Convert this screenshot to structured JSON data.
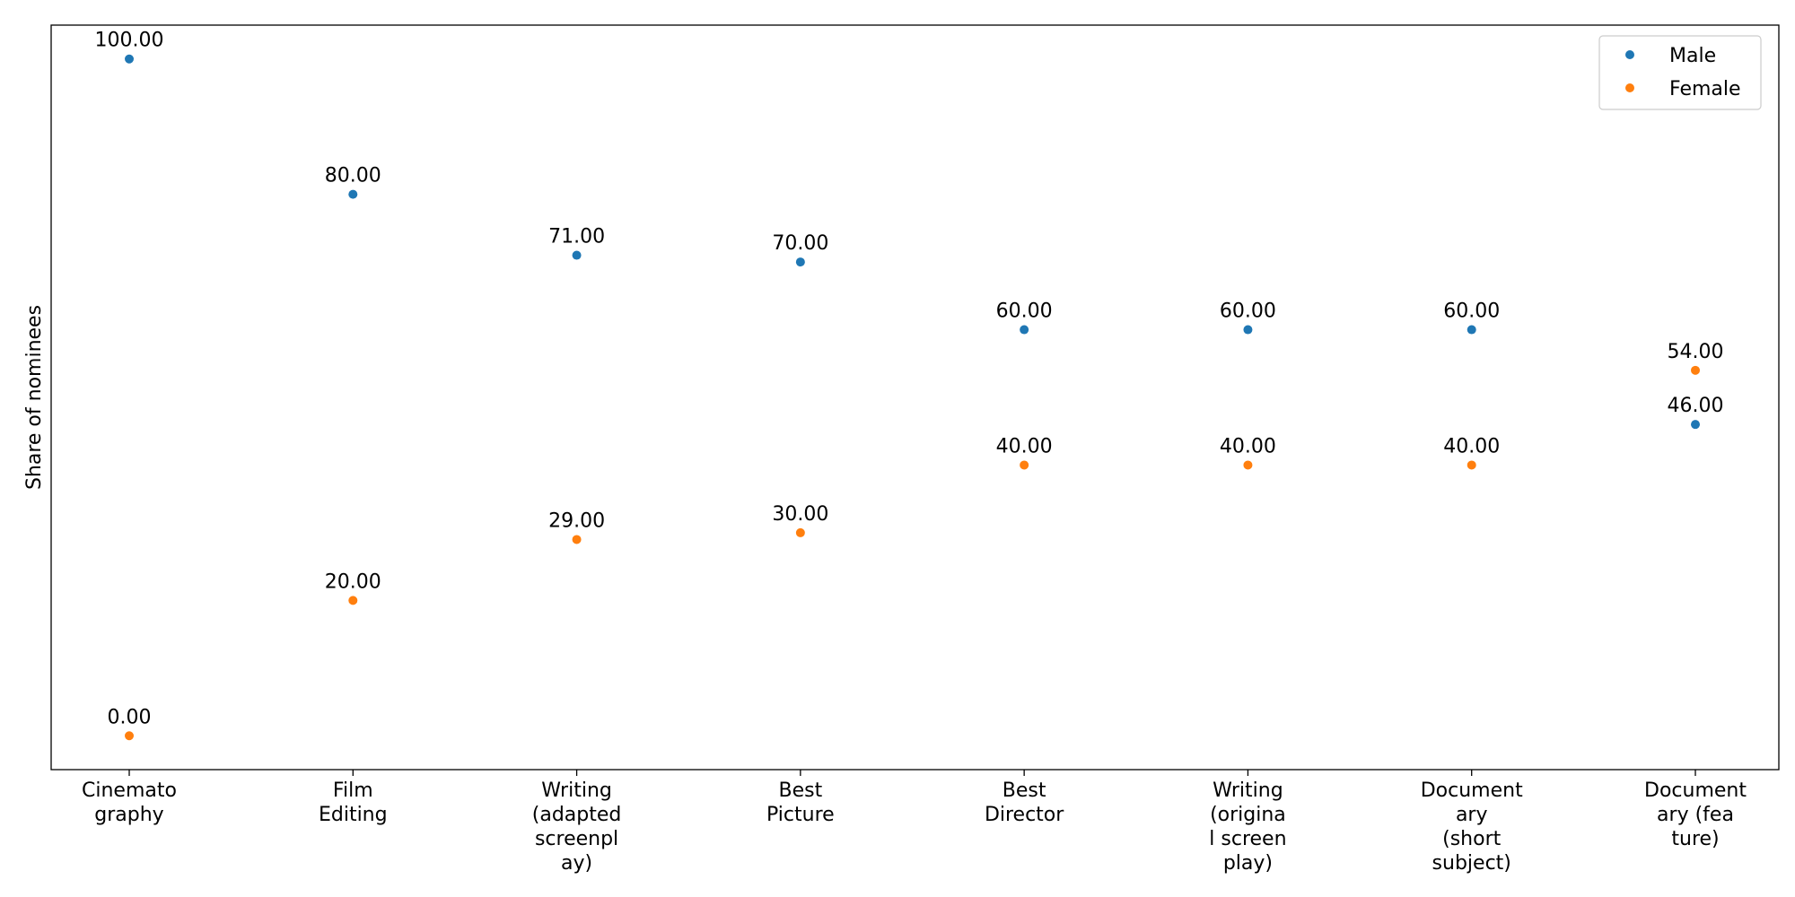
{
  "chart_data": {
    "type": "scatter",
    "title": "",
    "xlabel": "",
    "ylabel": "Share of nominees",
    "categories": [
      [
        "Cinemato",
        "graphy"
      ],
      [
        "Film",
        "Editing"
      ],
      [
        "Writing",
        "(adapted",
        "screenpl",
        "ay)"
      ],
      [
        "Best",
        "Picture"
      ],
      [
        "Best",
        "Director"
      ],
      [
        "Writing",
        "(origina",
        "l screen",
        "play)"
      ],
      [
        "Document",
        "ary",
        "(short",
        "subject)"
      ],
      [
        "Document",
        "ary (fea",
        "ture)"
      ]
    ],
    "series": [
      {
        "name": "Male",
        "color": "#1f77b4",
        "values": [
          100,
          80,
          71,
          70,
          60,
          60,
          60,
          46
        ],
        "labels": [
          "100.00",
          "80.00",
          "71.00",
          "70.00",
          "60.00",
          "60.00",
          "60.00",
          "46.00"
        ]
      },
      {
        "name": "Female",
        "color": "#ff7f0e",
        "values": [
          0,
          20,
          29,
          30,
          40,
          40,
          40,
          54
        ],
        "labels": [
          "0.00",
          "20.00",
          "29.00",
          "30.00",
          "40.00",
          "40.00",
          "40.00",
          "54.00"
        ]
      }
    ],
    "ylim": [
      -5,
      105
    ],
    "grid": false,
    "y_ticks_visible": false,
    "legend_position": "top-right"
  }
}
